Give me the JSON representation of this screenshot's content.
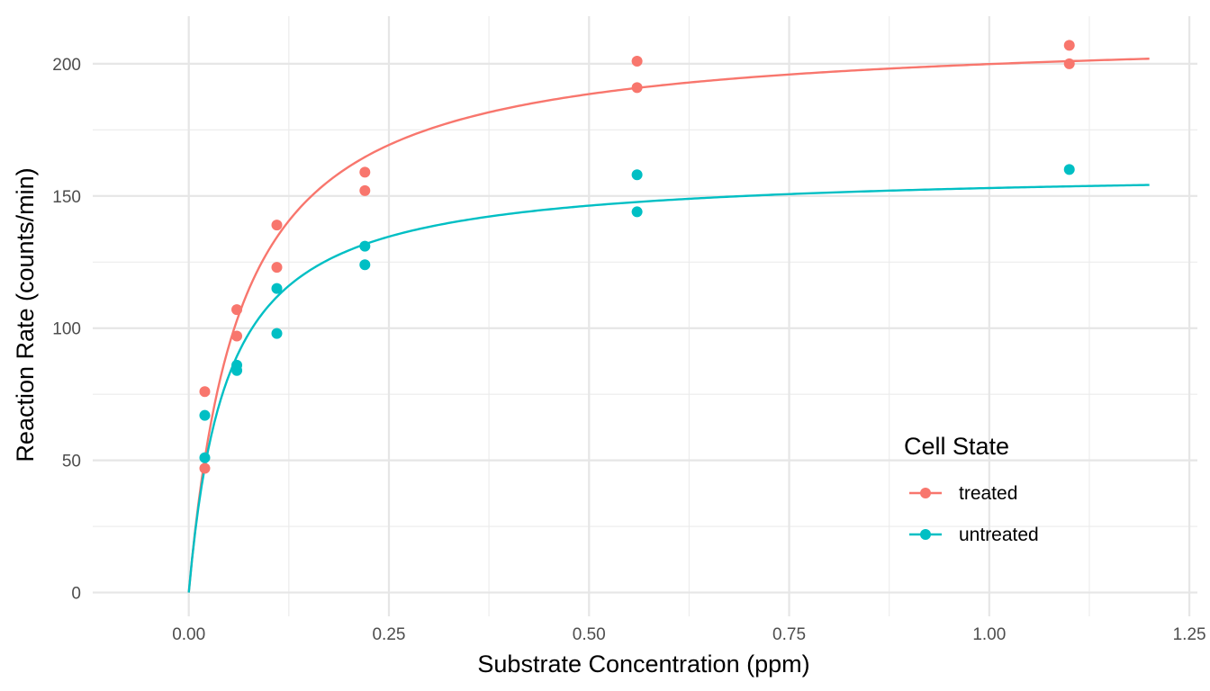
{
  "chart_data": {
    "type": "scatter",
    "xlabel": "Substrate Concentration (ppm)",
    "ylabel": "Reaction Rate (counts/min)",
    "xlim": [
      -0.12,
      1.26
    ],
    "ylim": [
      -9,
      218
    ],
    "x_ticks": [
      0,
      0.25,
      0.5,
      0.75,
      1.0,
      1.25
    ],
    "x_tick_labels": [
      "0.00",
      "0.25",
      "0.50",
      "0.75",
      "1.00",
      "1.25"
    ],
    "y_ticks": [
      0,
      50,
      100,
      150,
      200
    ],
    "y_tick_labels": [
      "0",
      "50",
      "100",
      "150",
      "200"
    ],
    "grid": true,
    "legend": {
      "title": "Cell State",
      "position": "bottom-right"
    },
    "series": [
      {
        "name": "treated",
        "color": "#F8766D",
        "points": [
          [
            0.02,
            76
          ],
          [
            0.02,
            47
          ],
          [
            0.06,
            97
          ],
          [
            0.06,
            107
          ],
          [
            0.11,
            123
          ],
          [
            0.11,
            139
          ],
          [
            0.22,
            159
          ],
          [
            0.22,
            152
          ],
          [
            0.56,
            191
          ],
          [
            0.56,
            201
          ],
          [
            1.1,
            207
          ],
          [
            1.1,
            200
          ]
        ],
        "fit": {
          "model": "michaelis-menten",
          "Vmax": 212.7,
          "Km": 0.0641,
          "x_range": [
            0,
            1.2
          ]
        }
      },
      {
        "name": "untreated",
        "color": "#00BFC4",
        "points": [
          [
            0.02,
            67
          ],
          [
            0.02,
            51
          ],
          [
            0.06,
            84
          ],
          [
            0.06,
            86
          ],
          [
            0.11,
            98
          ],
          [
            0.11,
            115
          ],
          [
            0.22,
            131
          ],
          [
            0.22,
            124
          ],
          [
            0.56,
            144
          ],
          [
            0.56,
            158
          ],
          [
            1.1,
            160
          ]
        ],
        "fit": {
          "model": "michaelis-menten",
          "Vmax": 160.3,
          "Km": 0.0477,
          "x_range": [
            0,
            1.2
          ]
        }
      }
    ]
  }
}
